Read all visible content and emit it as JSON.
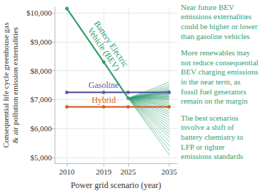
{
  "chart_data": {
    "type": "line",
    "x": [
      2010,
      2019,
      2025,
      2035
    ],
    "series": [
      {
        "name": "Battery Electric\nVehicle (BEV)",
        "color": "#2f9e6f",
        "marker": "circle",
        "values": [
          10150,
          8300,
          7050,
          null
        ],
        "scenarios_2035": [
          7600,
          7520,
          7450,
          7400,
          7350,
          7320,
          7300,
          7280,
          7260,
          7240,
          7220,
          7200,
          7180,
          7150,
          7120,
          7100,
          7080,
          7050,
          7020,
          7000,
          6950,
          6900,
          6850,
          6800,
          6750,
          6700,
          6620,
          6550,
          6480,
          6400,
          6300,
          6200,
          6100,
          6000,
          5900,
          5800,
          5700,
          5550,
          5400,
          5250,
          5100
        ]
      },
      {
        "name": "Gasoline",
        "color": "#5b5ea6",
        "marker": "circle",
        "values": [
          7250,
          7250,
          7250,
          7250
        ]
      },
      {
        "name": "Hybrid",
        "color": "#d1632a",
        "marker": "circle",
        "values": [
          6750,
          6750,
          6750,
          6750
        ]
      }
    ],
    "xlabel": "Power grid scenario (year)",
    "ylabel": "Consequential life cycle greenhouse gas\n& air pollution emission externalities",
    "xlim": [
      2007,
      2037
    ],
    "xticks": [
      2010,
      2019,
      2025,
      2035
    ],
    "ylim": [
      4800,
      10200
    ],
    "yticks": [
      {
        "value": 5000,
        "label": "$5,000"
      },
      {
        "value": 6000,
        "label": "$6,000"
      },
      {
        "value": 7000,
        "label": "$7,000"
      },
      {
        "value": 8000,
        "label": "$8,000"
      },
      {
        "value": 9000,
        "label": "$9,000"
      },
      {
        "value": 10000,
        "label": "$10,000"
      }
    ],
    "grid": true,
    "annotations": [
      "Near future BEV\nemissions externalities\ncould be higher or lower\nthan gasoline vehicles",
      "More renewables may\nnot reduce consequential\nBEV charging emissions\nin the near term, as\nfossil fuel generators\nremain on the margin",
      "The best scenarios\ninvolve a shift of\nbattery chemistry to\nLFP or tighter\nemissions standards"
    ]
  }
}
